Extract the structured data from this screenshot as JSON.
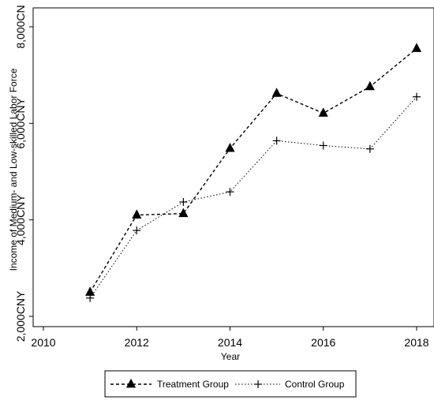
{
  "chart_data": {
    "type": "line",
    "title": "",
    "xlabel": "Year",
    "ylabel": "Income of Medium- and Low-skilled Labor Force",
    "xlim": [
      2010,
      2018
    ],
    "ylim": [
      2000,
      8000
    ],
    "x_ticks": [
      2010,
      2012,
      2014,
      2016,
      2018
    ],
    "y_ticks": [
      {
        "value": 2000,
        "label": "2,000CNY"
      },
      {
        "value": 4000,
        "label": "4,000CNY"
      },
      {
        "value": 6000,
        "label": "6,000CNY"
      },
      {
        "value": 8000,
        "label": "8,000CN"
      }
    ],
    "grid": false,
    "legend_position": "bottom",
    "x": [
      2011,
      2012,
      2013,
      2014,
      2015,
      2016,
      2017,
      2018
    ],
    "series": [
      {
        "name": "Treatment Group",
        "marker": "triangle",
        "line": "dashed",
        "values": [
          2500,
          4100,
          4130,
          5480,
          6620,
          6210,
          6760,
          7550
        ]
      },
      {
        "name": "Control Group",
        "marker": "plus",
        "line": "dotted",
        "values": [
          2380,
          3780,
          4370,
          4580,
          5640,
          5540,
          5470,
          6550
        ]
      }
    ]
  }
}
